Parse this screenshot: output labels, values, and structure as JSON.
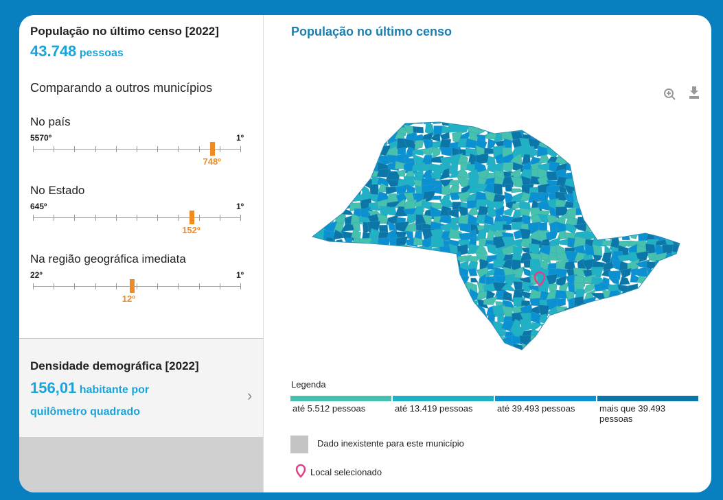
{
  "population": {
    "title": "População no último censo [2022]",
    "value": "43.748",
    "unit": "pessoas"
  },
  "comparison": {
    "title": "Comparando a outros municípios",
    "rankings": [
      {
        "label": "No país",
        "scale": [
          5570,
          1
        ],
        "scale_labels": [
          "5570º",
          "1º"
        ],
        "rank": 748,
        "rank_label": "748º"
      },
      {
        "label": "No Estado",
        "scale": [
          645,
          1
        ],
        "scale_labels": [
          "645º",
          "1º"
        ],
        "rank": 152,
        "rank_label": "152º"
      },
      {
        "label": "Na região geográfica imediata",
        "scale": [
          22,
          1
        ],
        "scale_labels": [
          "22º",
          "1º"
        ],
        "rank": 12,
        "rank_label": "12º"
      }
    ]
  },
  "density": {
    "title": "Densidade demográfica [2022]",
    "value": "156,01",
    "unit": "habitante por quilômetro quadrado"
  },
  "map": {
    "title": "População no último censo",
    "legend_title": "Legenda",
    "legend": [
      {
        "name": "até 5.512 pessoas",
        "color": "#45c1ad"
      },
      {
        "name": "até 13.419 pessoas",
        "color": "#20b1c4"
      },
      {
        "name": "até 39.493 pessoas",
        "color": "#0b91d2"
      },
      {
        "name": "mais que 39.493 pessoas",
        "color": "#0b76a7"
      }
    ],
    "missing": "Dado inexistente para este município",
    "selected": "Local selecionado"
  }
}
